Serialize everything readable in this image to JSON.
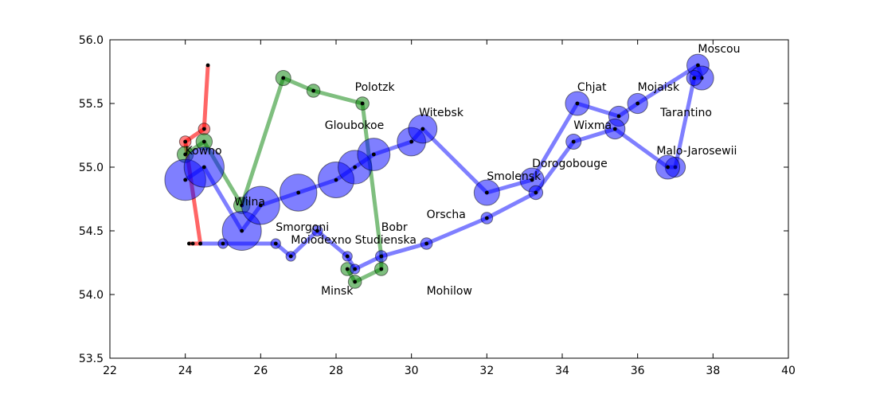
{
  "chart_data": {
    "type": "scatter",
    "title": "",
    "xlabel": "",
    "ylabel": "",
    "xlim": [
      22,
      40
    ],
    "ylim": [
      53.5,
      56.0
    ],
    "grid": false,
    "legend": "none",
    "x_ticks": [
      "22",
      "24",
      "26",
      "28",
      "30",
      "32",
      "34",
      "36",
      "38",
      "40"
    ],
    "y_ticks": [
      "53.5",
      "54.0",
      "54.5",
      "55.0",
      "55.5",
      "56.0"
    ],
    "series": [
      {
        "color": "#ff0000",
        "line_opacity": 0.6,
        "points": [
          {
            "x": 24.6,
            "y": 55.8,
            "size": 0.1
          },
          {
            "x": 24.5,
            "y": 55.3,
            "size": 0.5
          },
          {
            "x": 24.0,
            "y": 55.2,
            "size": 0.5
          },
          {
            "x": 24.4,
            "y": 54.4,
            "size": 0.1
          },
          {
            "x": 24.2,
            "y": 54.4,
            "size": 0.1
          },
          {
            "x": 24.1,
            "y": 54.4,
            "size": 0.1
          }
        ]
      },
      {
        "color": "#008000",
        "line_opacity": 0.5,
        "points": [
          {
            "x": 24.0,
            "y": 55.1,
            "size": 1.2
          },
          {
            "x": 24.5,
            "y": 55.2,
            "size": 1.2
          },
          {
            "x": 25.5,
            "y": 54.7,
            "size": 1.2
          },
          {
            "x": 26.6,
            "y": 55.7,
            "size": 1.0
          },
          {
            "x": 27.4,
            "y": 55.6,
            "size": 0.7
          },
          {
            "x": 28.7,
            "y": 55.5,
            "size": 0.7
          },
          {
            "x": 29.2,
            "y": 54.3,
            "size": 0.1
          },
          {
            "x": 29.2,
            "y": 54.2,
            "size": 0.7
          },
          {
            "x": 28.5,
            "y": 54.1,
            "size": 0.7
          },
          {
            "x": 28.3,
            "y": 54.2,
            "size": 0.7
          }
        ]
      },
      {
        "color": "#0000ff",
        "line_opacity": 0.5,
        "points": [
          {
            "x": 24.0,
            "y": 54.9,
            "size": 10.0
          },
          {
            "x": 24.5,
            "y": 55.0,
            "size": 9.5
          },
          {
            "x": 25.5,
            "y": 54.5,
            "size": 9.0
          },
          {
            "x": 26.0,
            "y": 54.7,
            "size": 8.5
          },
          {
            "x": 27.0,
            "y": 54.8,
            "size": 8.0
          },
          {
            "x": 28.0,
            "y": 54.9,
            "size": 7.5
          },
          {
            "x": 28.5,
            "y": 55.0,
            "size": 6.5
          },
          {
            "x": 29.0,
            "y": 55.1,
            "size": 6.0
          },
          {
            "x": 30.0,
            "y": 55.2,
            "size": 4.5
          },
          {
            "x": 30.3,
            "y": 55.3,
            "size": 4.5
          },
          {
            "x": 32.0,
            "y": 54.8,
            "size": 3.5
          },
          {
            "x": 33.2,
            "y": 54.9,
            "size": 3.0
          },
          {
            "x": 34.4,
            "y": 55.5,
            "size": 3.0
          },
          {
            "x": 35.5,
            "y": 55.4,
            "size": 2.0
          },
          {
            "x": 36.0,
            "y": 55.5,
            "size": 2.0
          },
          {
            "x": 37.6,
            "y": 55.8,
            "size": 2.5
          },
          {
            "x": 37.7,
            "y": 55.7,
            "size": 3.0
          },
          {
            "x": 37.5,
            "y": 55.7,
            "size": 1.0
          },
          {
            "x": 37.0,
            "y": 55.0,
            "size": 2.0
          },
          {
            "x": 36.8,
            "y": 55.0,
            "size": 3.0
          },
          {
            "x": 35.4,
            "y": 55.3,
            "size": 2.0
          },
          {
            "x": 34.3,
            "y": 55.2,
            "size": 1.0
          },
          {
            "x": 33.3,
            "y": 54.8,
            "size": 0.8
          },
          {
            "x": 32.0,
            "y": 54.6,
            "size": 0.5
          },
          {
            "x": 30.4,
            "y": 54.4,
            "size": 0.5
          },
          {
            "x": 29.2,
            "y": 54.3,
            "size": 0.5
          },
          {
            "x": 28.5,
            "y": 54.2,
            "size": 0.3
          },
          {
            "x": 28.3,
            "y": 54.3,
            "size": 0.3
          },
          {
            "x": 27.5,
            "y": 54.5,
            "size": 0.4
          },
          {
            "x": 26.8,
            "y": 54.3,
            "size": 0.3
          },
          {
            "x": 26.4,
            "y": 54.4,
            "size": 0.3
          },
          {
            "x": 25.0,
            "y": 54.4,
            "size": 0.3
          },
          {
            "x": 24.4,
            "y": 54.4,
            "size": 0.1
          }
        ]
      }
    ],
    "annotations": [
      {
        "text": "Kowno",
        "x": 24.0,
        "y": 55.1
      },
      {
        "text": "Wilna",
        "x": 25.3,
        "y": 54.7
      },
      {
        "text": "Smorgoni",
        "x": 26.4,
        "y": 54.5
      },
      {
        "text": "Moiodexno",
        "x": 26.8,
        "y": 54.4
      },
      {
        "text": "Gloubokoe",
        "x": 27.7,
        "y": 55.3
      },
      {
        "text": "Minsk",
        "x": 27.6,
        "y": 54.0
      },
      {
        "text": "Studienska",
        "x": 28.5,
        "y": 54.4
      },
      {
        "text": "Polotzk",
        "x": 28.5,
        "y": 55.6
      },
      {
        "text": "Bobr",
        "x": 29.2,
        "y": 54.5
      },
      {
        "text": "Witebsk",
        "x": 30.2,
        "y": 55.4
      },
      {
        "text": "Orscha",
        "x": 30.4,
        "y": 54.6
      },
      {
        "text": "Mohilow",
        "x": 30.4,
        "y": 54.0
      },
      {
        "text": "Smolensk",
        "x": 32.0,
        "y": 54.9
      },
      {
        "text": "Dorogobouge",
        "x": 33.2,
        "y": 55.0
      },
      {
        "text": "Wixma",
        "x": 34.3,
        "y": 55.3
      },
      {
        "text": "Chjat",
        "x": 34.4,
        "y": 55.6
      },
      {
        "text": "Mojaisk",
        "x": 36.0,
        "y": 55.6
      },
      {
        "text": "Tarantino",
        "x": 36.6,
        "y": 55.4
      },
      {
        "text": "Malo-Jarosewii",
        "x": 36.5,
        "y": 55.1
      },
      {
        "text": "Moscou",
        "x": 37.6,
        "y": 55.9
      }
    ]
  }
}
